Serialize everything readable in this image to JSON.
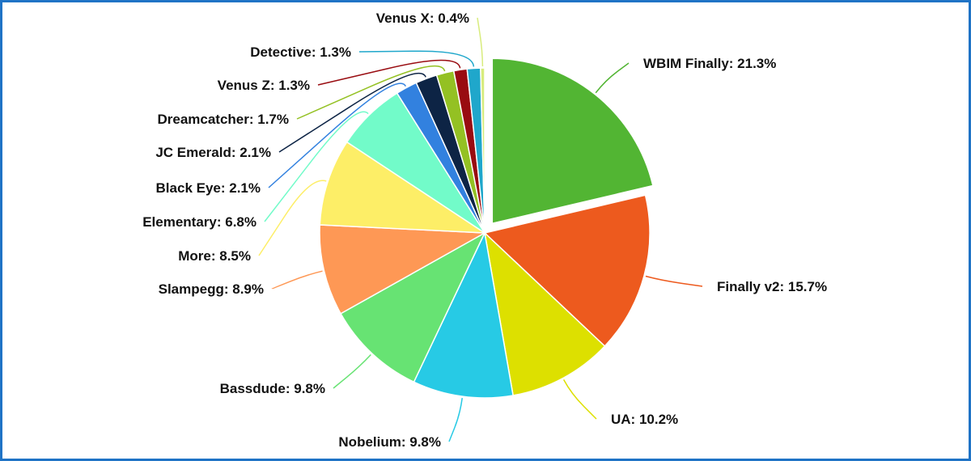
{
  "chart_data": {
    "type": "pie",
    "exploded": "WBIM Finally",
    "slices": [
      {
        "name": "WBIM Finally",
        "value": 21.3,
        "label": "WBIM Finally: 21.3%",
        "color": "#52b533"
      },
      {
        "name": "Finally v2",
        "value": 15.7,
        "label": "Finally v2: 15.7%",
        "color": "#ed5a1e"
      },
      {
        "name": "UA",
        "value": 10.2,
        "label": "UA: 10.2%",
        "color": "#dde000"
      },
      {
        "name": "Nobelium",
        "value": 9.8,
        "label": "Nobelium: 9.8%",
        "color": "#27cae5"
      },
      {
        "name": "Bassdude",
        "value": 9.8,
        "label": "Bassdude: 9.8%",
        "color": "#67e373"
      },
      {
        "name": "Slampegg",
        "value": 8.9,
        "label": "Slampegg: 8.9%",
        "color": "#fe9855"
      },
      {
        "name": "More",
        "value": 8.5,
        "label": "More: 8.5%",
        "color": "#fdee67"
      },
      {
        "name": "Elementary",
        "value": 6.8,
        "label": "Elementary: 6.8%",
        "color": "#72fbc9"
      },
      {
        "name": "Black Eye",
        "value": 2.1,
        "label": "Black Eye: 2.1%",
        "color": "#3281df"
      },
      {
        "name": "JC Emerald",
        "value": 2.1,
        "label": "JC Emerald: 2.1%",
        "color": "#0d2445"
      },
      {
        "name": "Dreamcatcher",
        "value": 1.7,
        "label": "Dreamcatcher: 1.7%",
        "color": "#94c123"
      },
      {
        "name": "Venus Z",
        "value": 1.3,
        "label": "Venus Z: 1.3%",
        "color": "#990c11"
      },
      {
        "name": "Detective",
        "value": 1.3,
        "label": "Detective: 1.3%",
        "color": "#1fa7cb"
      },
      {
        "name": "Venus X",
        "value": 0.4,
        "label": "Venus X: 0.4%",
        "color": "#d8ec7d"
      }
    ]
  },
  "frame_color": "#1f73c6"
}
